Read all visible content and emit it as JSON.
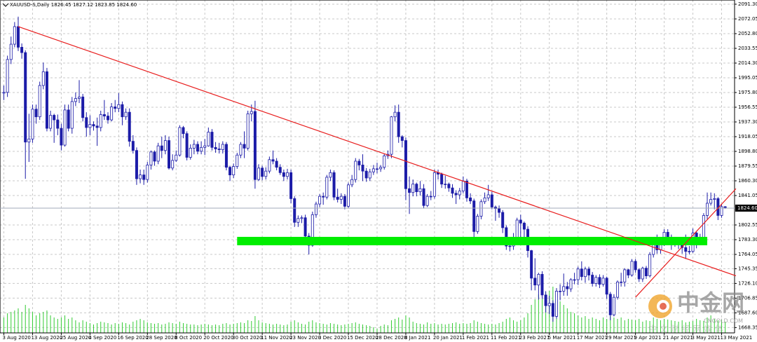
{
  "chart_data": {
    "type": "candlestick",
    "title": "XAUUSD-S,Daily  1826.45 1827.12 1823.85 1824.60",
    "categories": [
      "3 Aug 2020",
      null,
      null,
      null,
      null,
      null,
      null,
      null,
      "13 Aug 2020",
      null,
      null,
      null,
      null,
      null,
      null,
      null,
      "25 Aug 2020",
      null,
      null,
      null,
      null,
      null,
      null,
      null,
      "4 Sep 2020",
      null,
      null,
      null,
      null,
      null,
      null,
      null,
      "16 Sep 2020",
      null,
      null,
      null,
      null,
      null,
      null,
      null,
      "28 Sep 2020",
      null,
      null,
      null,
      null,
      null,
      null,
      null,
      "8 Oct 2020",
      null,
      null,
      null,
      null,
      null,
      null,
      null,
      "20 Oct 2020",
      null,
      null,
      null,
      null,
      null,
      null,
      null,
      "30 Oct 2020",
      null,
      null,
      null,
      null,
      null,
      null,
      null,
      "11 Nov 2020",
      null,
      null,
      null,
      null,
      null,
      null,
      null,
      "23 Nov 2020",
      null,
      null,
      null,
      null,
      null,
      null,
      null,
      "3 Dec 2020",
      null,
      null,
      null,
      null,
      null,
      null,
      null,
      "15 Dec 2020",
      null,
      null,
      null,
      null,
      null,
      null,
      null,
      "28 Dec 2020",
      null,
      null,
      null,
      null,
      null,
      null,
      null,
      "8 Jan 2021",
      null,
      null,
      null,
      null,
      null,
      null,
      null,
      "20 Jan 2021",
      null,
      null,
      null,
      null,
      null,
      null,
      null,
      "1 Feb 2021",
      null,
      null,
      null,
      null,
      null,
      null,
      null,
      "11 Feb 2021",
      null,
      null,
      null,
      null,
      null,
      null,
      null,
      "23 Feb 2021",
      null,
      null,
      null,
      null,
      null,
      null,
      null,
      "5 Mar 2021",
      null,
      null,
      null,
      null,
      null,
      null,
      null,
      "17 Mar 2021",
      null,
      null,
      null,
      null,
      null,
      null,
      null,
      "29 Mar 2021",
      null,
      null,
      null,
      null,
      null,
      null,
      null,
      "9 Apr 2021",
      null,
      null,
      null,
      null,
      null,
      null,
      null,
      "21 Apr 2021",
      null,
      null,
      null,
      null,
      null,
      null,
      null,
      "3 May 2021",
      null,
      null,
      null,
      null,
      null,
      null,
      null,
      "13 May 2021",
      null
    ],
    "open": [
      1975,
      1976,
      2019,
      2039,
      2062,
      2035,
      2028,
      1911,
      1915,
      1954,
      1944,
      1985,
      2003,
      1929,
      1946,
      1940,
      1929,
      1907,
      1953,
      1929,
      1964,
      1968,
      1970,
      1943,
      1930,
      1934,
      1932,
      1930,
      1947,
      1945,
      1940,
      1957,
      1955,
      1960,
      1944,
      1950,
      1912,
      1900,
      1863,
      1868,
      1862,
      1881,
      1898,
      1886,
      1906,
      1900,
      1913,
      1877,
      1887,
      1894,
      1930,
      1922,
      1891,
      1903,
      1908,
      1899,
      1904,
      1906,
      1924,
      1904,
      1902,
      1901,
      1908,
      1878,
      1868,
      1879,
      1894,
      1908,
      1903,
      1948,
      1951,
      1862,
      1877,
      1866,
      1873,
      1888,
      1886,
      1878,
      1871,
      1866,
      1871,
      1837,
      1806,
      1811,
      1812,
      1788,
      1776,
      1816,
      1830,
      1840,
      1839,
      1865,
      1871,
      1839,
      1836,
      1840,
      1827,
      1855,
      1862,
      1886,
      1881,
      1873,
      1864,
      1872,
      1876,
      1876,
      1878,
      1893,
      1895,
      1944,
      1950,
      1918,
      1913,
      1850,
      1845,
      1856,
      1846,
      1850,
      1828,
      1840,
      1840,
      1871,
      1869,
      1856,
      1856,
      1851,
      1844,
      1842,
      1847,
      1860,
      1838,
      1834,
      1794,
      1814,
      1833,
      1838,
      1842,
      1826,
      1824,
      1819,
      1799,
      1775,
      1775,
      1784,
      1809,
      1805,
      1797,
      1769,
      1733,
      1724,
      1738,
      1711,
      1697,
      1700,
      1683,
      1716,
      1716,
      1722,
      1719,
      1731,
      1731,
      1745,
      1735,
      1745,
      1737,
      1726,
      1734,
      1725,
      1733,
      1712,
      1685,
      1708,
      1728,
      1728,
      1744,
      1737,
      1755,
      1744,
      1732,
      1746,
      1736,
      1764,
      1777,
      1770,
      1778,
      1793,
      1783,
      1777,
      1781,
      1777,
      1773,
      1768,
      1768,
      1792,
      1778,
      1785,
      1815,
      1831,
      1836,
      1837,
      1815,
      1826.45
    ],
    "high": [
      1985,
      2024,
      2049,
      2068,
      2075,
      2040,
      2031,
      1948,
      1960,
      1960,
      1990,
      2015,
      2008,
      1952,
      1948,
      1947,
      1935,
      1960,
      1960,
      1970,
      1976,
      1992,
      1974,
      1950,
      1946,
      1938,
      1943,
      1952,
      1966,
      1950,
      1962,
      1966,
      1975,
      1964,
      1955,
      1955,
      1920,
      1904,
      1875,
      1875,
      1885,
      1900,
      1900,
      1910,
      1918,
      1920,
      1918,
      1895,
      1900,
      1933,
      1932,
      1925,
      1908,
      1914,
      1912,
      1912,
      1915,
      1930,
      1928,
      1911,
      1910,
      1912,
      1911,
      1880,
      1883,
      1897,
      1911,
      1925,
      1952,
      1960,
      1965,
      1882,
      1880,
      1878,
      1892,
      1900,
      1890,
      1882,
      1875,
      1876,
      1875,
      1840,
      1815,
      1815,
      1816,
      1792,
      1820,
      1833,
      1843,
      1845,
      1868,
      1875,
      1874,
      1850,
      1844,
      1843,
      1858,
      1868,
      1890,
      1889,
      1895,
      1877,
      1876,
      1881,
      1884,
      1881,
      1896,
      1900,
      1945,
      1959,
      1960,
      1920,
      1917,
      1866,
      1862,
      1858,
      1860,
      1856,
      1843,
      1847,
      1875,
      1875,
      1871,
      1867,
      1858,
      1856,
      1848,
      1851,
      1866,
      1863,
      1844,
      1837,
      1817,
      1836,
      1845,
      1855,
      1846,
      1828,
      1828,
      1822,
      1802,
      1785,
      1792,
      1812,
      1816,
      1807,
      1801,
      1770,
      1759,
      1740,
      1742,
      1716,
      1710,
      1704,
      1720,
      1725,
      1739,
      1728,
      1733,
      1740,
      1748,
      1755,
      1748,
      1748,
      1741,
      1737,
      1738,
      1737,
      1735,
      1715,
      1712,
      1730,
      1740,
      1746,
      1745,
      1758,
      1758,
      1746,
      1748,
      1749,
      1767,
      1783,
      1790,
      1781,
      1797,
      1797,
      1790,
      1785,
      1784,
      1780,
      1790,
      1775,
      1798,
      1794,
      1791,
      1818,
      1845,
      1845,
      1844,
      1839,
      1830,
      1827.12
    ],
    "low": [
      1966,
      1970,
      2013,
      2035,
      2030,
      2020,
      1863,
      1885,
      1910,
      1935,
      1940,
      1980,
      1925,
      1925,
      1910,
      1920,
      1900,
      1905,
      1925,
      1922,
      1958,
      1962,
      1938,
      1918,
      1920,
      1926,
      1906,
      1925,
      1940,
      1935,
      1938,
      1950,
      1950,
      1933,
      1940,
      1905,
      1896,
      1855,
      1857,
      1855,
      1858,
      1875,
      1880,
      1882,
      1890,
      1895,
      1875,
      1874,
      1885,
      1892,
      1916,
      1887,
      1888,
      1895,
      1895,
      1895,
      1894,
      1905,
      1900,
      1897,
      1896,
      1896,
      1874,
      1860,
      1864,
      1876,
      1890,
      1890,
      1900,
      1938,
      1850,
      1860,
      1861,
      1862,
      1870,
      1882,
      1874,
      1868,
      1860,
      1862,
      1831,
      1800,
      1800,
      1805,
      1781,
      1764,
      1774,
      1812,
      1826,
      1829,
      1836,
      1860,
      1835,
      1832,
      1830,
      1823,
      1825,
      1852,
      1858,
      1874,
      1860,
      1859,
      1860,
      1868,
      1870,
      1872,
      1875,
      1889,
      1890,
      1938,
      1910,
      1904,
      1835,
      1817,
      1840,
      1840,
      1841,
      1824,
      1826,
      1835,
      1837,
      1862,
      1851,
      1850,
      1846,
      1838,
      1830,
      1836,
      1844,
      1833,
      1830,
      1785,
      1791,
      1810,
      1830,
      1834,
      1823,
      1808,
      1812,
      1792,
      1770,
      1768,
      1770,
      1780,
      1782,
      1784,
      1760,
      1717,
      1717,
      1705,
      1706,
      1688,
      1686,
      1676,
      1680,
      1704,
      1710,
      1710,
      1715,
      1725,
      1724,
      1730,
      1727,
      1730,
      1722,
      1722,
      1720,
      1722,
      1706,
      1678,
      1683,
      1705,
      1722,
      1722,
      1733,
      1735,
      1740,
      1728,
      1728,
      1732,
      1734,
      1760,
      1765,
      1765,
      1775,
      1779,
      1770,
      1774,
      1771,
      1765,
      1758,
      1764,
      1766,
      1772,
      1776,
      1783,
      1810,
      1828,
      1823,
      1809,
      1812,
      1823.85
    ],
    "close": [
      1976,
      2019,
      2039,
      2062,
      2035,
      2028,
      1911,
      1915,
      1954,
      1944,
      1985,
      2003,
      1929,
      1946,
      1940,
      1929,
      1907,
      1953,
      1929,
      1964,
      1968,
      1970,
      1943,
      1930,
      1934,
      1932,
      1930,
      1947,
      1945,
      1940,
      1957,
      1955,
      1960,
      1944,
      1950,
      1912,
      1900,
      1863,
      1868,
      1862,
      1881,
      1898,
      1886,
      1906,
      1900,
      1913,
      1877,
      1887,
      1894,
      1930,
      1922,
      1891,
      1903,
      1908,
      1899,
      1904,
      1906,
      1924,
      1904,
      1902,
      1901,
      1908,
      1878,
      1868,
      1879,
      1894,
      1908,
      1903,
      1948,
      1951,
      1862,
      1877,
      1866,
      1873,
      1888,
      1886,
      1878,
      1871,
      1866,
      1871,
      1837,
      1806,
      1811,
      1812,
      1788,
      1776,
      1816,
      1830,
      1840,
      1839,
      1865,
      1871,
      1839,
      1836,
      1840,
      1827,
      1855,
      1862,
      1886,
      1881,
      1873,
      1864,
      1872,
      1876,
      1876,
      1878,
      1893,
      1895,
      1944,
      1950,
      1918,
      1913,
      1850,
      1845,
      1856,
      1846,
      1850,
      1828,
      1840,
      1840,
      1871,
      1869,
      1856,
      1856,
      1851,
      1844,
      1842,
      1847,
      1860,
      1838,
      1834,
      1794,
      1814,
      1833,
      1838,
      1842,
      1826,
      1824,
      1819,
      1799,
      1775,
      1775,
      1784,
      1809,
      1805,
      1797,
      1769,
      1733,
      1724,
      1738,
      1711,
      1697,
      1700,
      1683,
      1716,
      1716,
      1722,
      1719,
      1731,
      1731,
      1745,
      1735,
      1745,
      1737,
      1726,
      1734,
      1725,
      1733,
      1712,
      1685,
      1708,
      1728,
      1728,
      1744,
      1737,
      1755,
      1744,
      1732,
      1746,
      1736,
      1764,
      1777,
      1770,
      1778,
      1793,
      1783,
      1777,
      1781,
      1777,
      1773,
      1768,
      1768,
      1792,
      1778,
      1785,
      1815,
      1831,
      1836,
      1837,
      1815,
      1826.45,
      1824.6
    ],
    "candle_color": "#1c1ca8",
    "volumes": [
      22,
      28,
      30,
      32,
      35,
      30,
      40,
      35,
      30,
      25,
      28,
      30,
      32,
      25,
      22,
      20,
      22,
      25,
      20,
      22,
      18,
      15,
      18,
      16,
      14,
      12,
      14,
      16,
      15,
      14,
      12,
      14,
      13,
      15,
      14,
      12,
      16,
      18,
      20,
      18,
      15,
      14,
      13,
      14,
      12,
      13,
      15,
      14,
      13,
      16,
      14,
      13,
      12,
      12,
      11,
      12,
      13,
      12,
      11,
      12,
      11,
      13,
      14,
      12,
      13,
      14,
      15,
      14,
      18,
      17,
      24,
      18,
      15,
      14,
      13,
      12,
      13,
      12,
      11,
      12,
      16,
      18,
      15,
      13,
      12,
      16,
      18,
      15,
      14,
      13,
      12,
      14,
      13,
      12,
      11,
      12,
      13,
      14,
      15,
      13,
      12,
      11,
      10,
      8,
      6,
      10,
      12,
      11,
      18,
      20,
      22,
      19,
      25,
      22,
      16,
      14,
      13,
      12,
      15,
      13,
      14,
      12,
      13,
      12,
      13,
      14,
      15,
      13,
      14,
      13,
      14,
      18,
      16,
      14,
      13,
      12,
      13,
      12,
      14,
      16,
      20,
      22,
      18,
      16,
      18,
      22,
      28,
      40,
      48,
      55,
      50,
      58,
      60,
      66,
      62,
      45,
      40,
      35,
      30,
      28,
      25,
      22,
      24,
      20,
      22,
      20,
      18,
      22,
      20,
      24,
      22,
      20,
      22,
      18,
      20,
      19,
      18,
      20,
      16,
      18,
      17,
      22,
      20,
      18,
      20,
      19,
      18,
      17,
      16,
      18,
      15,
      16,
      17,
      20,
      18,
      17,
      22,
      25,
      20,
      18,
      19,
      16
    ],
    "volume_color": "#33cc33",
    "volume_lim": [
      0,
      100
    ],
    "ylim": [
      1661.4,
      2096.8
    ],
    "yticks": [
      {
        "value": 2091.3,
        "label": "2091.30"
      },
      2072.05,
      {
        "value": 2052.8,
        "label": "2052.80"
      },
      2033.55,
      {
        "value": 2014.3,
        "label": "2014.30"
      },
      1995.05,
      {
        "value": 1975.8,
        "label": "1975.80"
      },
      1956.55,
      {
        "value": 1937.3,
        "label": "1937.30"
      },
      1918.05,
      {
        "value": 1898.8,
        "label": "1898.80"
      },
      1879.55,
      {
        "value": 1860.3,
        "label": "1860.30"
      },
      1841.05,
      1802.55,
      {
        "value": 1783.3,
        "label": "1783.30"
      },
      1764.05,
      1745.35,
      {
        "value": 1726.1,
        "label": "1726.10"
      },
      1706.85,
      {
        "value": 1687.6,
        "label": "1687.60"
      },
      1668.35
    ],
    "grid": true,
    "current_price": {
      "value": 1824.6,
      "label": "1824.60"
    },
    "zone": {
      "x": [
        65,
        196
      ],
      "y": [
        1776,
        1787
      ],
      "color": "#00ee00"
    },
    "trendlines": [
      {
        "x": [
          4,
          204
        ],
        "y": [
          2062,
          1736
        ],
        "color": "#e81c1c"
      },
      {
        "x": [
          176,
          204
        ],
        "y": [
          1708,
          1850
        ],
        "color": "#e81c1c"
      }
    ],
    "watermark": "中金网",
    "watermark_sub": "CNGOLD.COM",
    "watermark_footer": "中 文 财 经 网 媒 体"
  }
}
